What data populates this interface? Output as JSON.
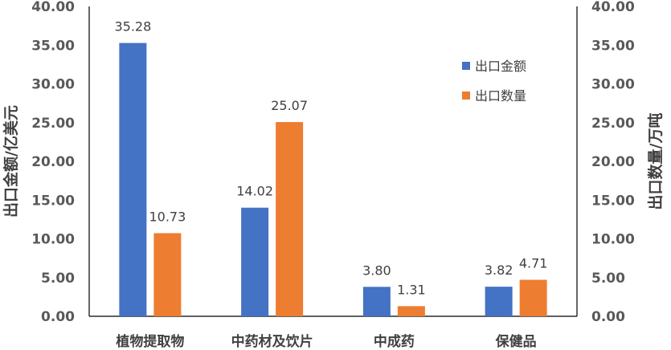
{
  "chart_data": {
    "type": "bar",
    "categories": [
      "植物提取物",
      "中药材及饮片",
      "中成药",
      "保健品"
    ],
    "series": [
      {
        "name": "出口金额",
        "values": [
          35.28,
          14.02,
          3.8,
          3.82
        ],
        "color": "#4472C4",
        "axis": "left"
      },
      {
        "name": "出口数量",
        "values": [
          10.73,
          25.07,
          1.31,
          4.71
        ],
        "color": "#ED7D31",
        "axis": "right"
      }
    ],
    "ylabel": "出口金额/亿美元",
    "y2label": "出口数量/万吨",
    "ylim": [
      0,
      40
    ],
    "y2lim": [
      0,
      40
    ],
    "yticks": [
      "0.00",
      "5.00",
      "10.00",
      "15.00",
      "20.00",
      "25.00",
      "30.00",
      "35.00",
      "40.00"
    ],
    "y2ticks": [
      "0.00",
      "5.00",
      "10.00",
      "15.00",
      "20.00",
      "25.00",
      "30.00",
      "35.00",
      "40.00"
    ],
    "grid": false,
    "legend_position": "top-right"
  }
}
